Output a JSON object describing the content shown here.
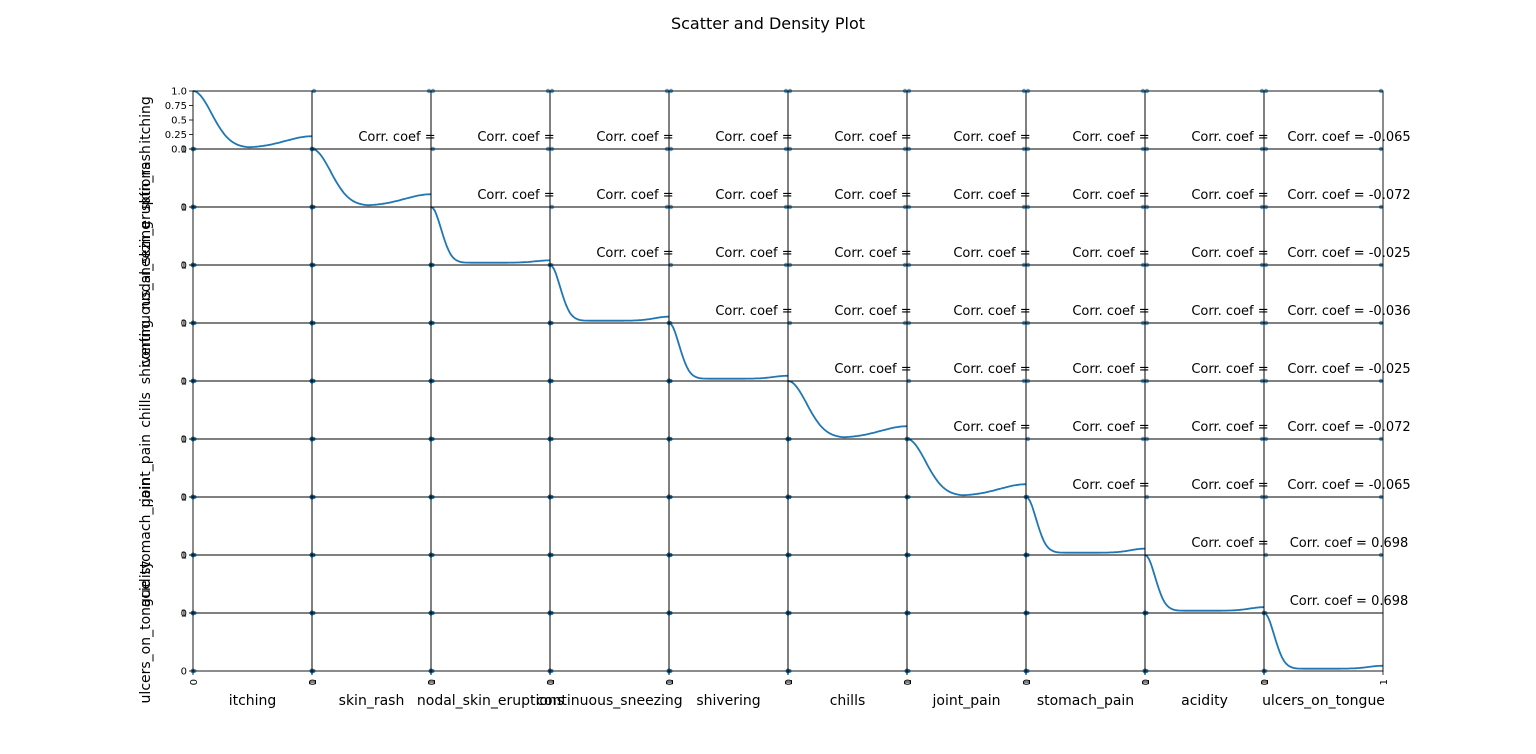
{
  "chart_data": {
    "type": "scatter",
    "title": "Scatter and Density Plot",
    "variables": [
      "itching",
      "skin_rash",
      "nodal_skin_eruptions",
      "continuous_sneezing",
      "shivering",
      "chills",
      "joint_pain",
      "stomach_pain",
      "acidity",
      "ulcers_on_tongue"
    ],
    "x_ticks": [
      "0",
      "1"
    ],
    "y_ticks": [
      "0",
      "1"
    ],
    "first_row_y_ticks": [
      "0.0",
      "0.25",
      "0.5",
      "0.75",
      "1.0"
    ],
    "axis_range": [
      0,
      1
    ],
    "series_color": "#1f77b4",
    "diagonal": "kde",
    "corr_label": "Corr. coef = ",
    "corr_values_shown": [
      {
        "row": 0,
        "value": "-0.065"
      },
      {
        "row": 1,
        "value": "-0.072"
      },
      {
        "row": 2,
        "value": "-0.025"
      },
      {
        "row": 3,
        "value": "-0.036"
      },
      {
        "row": 4,
        "value": "-0.025"
      },
      {
        "row": 5,
        "value": "-0.072"
      },
      {
        "row": 6,
        "value": "-0.065"
      },
      {
        "row": 7,
        "value": "0.698"
      },
      {
        "row": 8,
        "value": "0.698"
      }
    ],
    "kde_peak_near_zero": [
      0.8,
      0.8,
      1.0,
      1.0,
      1.0,
      0.85,
      0.85,
      1.0,
      1.0,
      1.0
    ],
    "kde_bump_near_one": [
      0.2,
      0.2,
      0.04,
      0.07,
      0.05,
      0.2,
      0.2,
      0.07,
      0.06,
      0.05
    ],
    "grid": false,
    "legend": "none"
  }
}
